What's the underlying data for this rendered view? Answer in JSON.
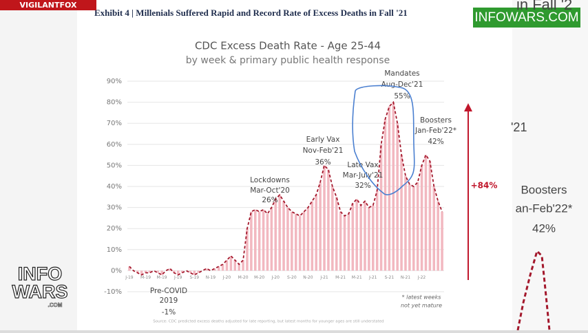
{
  "page": {
    "exhibit": "Exhibit 4 | Millenials Suffered Rapid and Record Rate of Excess Deaths in Fall '21",
    "brand_top_left": "VIGILANTFOX",
    "brand_top_right": "INFOWARS.COM",
    "logo": [
      "INFO",
      "WARS",
      ".COM"
    ],
    "zoom_texts": [
      "in Fall '2",
      "'21",
      "Boosters",
      "an-Feb'22*",
      "42%"
    ]
  },
  "chart_data": {
    "type": "bar",
    "title": "CDC Excess Death Rate - Age 25-44",
    "subtitle": "by week & primary public health response",
    "categories": [
      "J-19",
      null,
      null,
      null,
      "M-19",
      null,
      null,
      null,
      "M-19",
      null,
      null,
      null,
      "J-19",
      null,
      null,
      null,
      "S-19",
      null,
      null,
      null,
      "N-19",
      null,
      null,
      null,
      "J-20",
      null,
      null,
      null,
      "M-20",
      null,
      null,
      null,
      "M-20",
      null,
      null,
      null,
      "J-20",
      null,
      null,
      null,
      "S-20",
      null,
      null,
      null,
      "N-20",
      null,
      null,
      null,
      "J-21",
      null,
      null,
      null,
      "M-21",
      null,
      null,
      null,
      "M-21",
      null,
      null,
      null,
      "J-21",
      null,
      null,
      null,
      "S-21",
      null,
      null,
      null,
      "N-21",
      null,
      null,
      null,
      "J-22",
      null,
      null,
      null,
      null,
      null
    ],
    "values": [
      2,
      0,
      -1,
      -2,
      -1,
      -1,
      0,
      -1,
      -2,
      0,
      1,
      -1,
      -2,
      -1,
      0,
      -1,
      -2,
      -1,
      0,
      1,
      0,
      1,
      2,
      3,
      5,
      7,
      5,
      3,
      5,
      20,
      28,
      29,
      28,
      29,
      27,
      30,
      34,
      36,
      33,
      30,
      28,
      27,
      26,
      28,
      30,
      33,
      36,
      42,
      50,
      48,
      40,
      35,
      28,
      26,
      27,
      32,
      34,
      31,
      33,
      30,
      31,
      38,
      60,
      72,
      78,
      80,
      70,
      55,
      45,
      41,
      40,
      42,
      50,
      55,
      52,
      40,
      33,
      28
    ],
    "color": "#f2b8c0",
    "line_color": "#a3182c",
    "ylim": [
      -10,
      90
    ],
    "yticks": [
      {
        "value": -10,
        "label": "-10%"
      },
      {
        "value": 0,
        "label": "0%"
      },
      {
        "value": 10,
        "label": "10%"
      },
      {
        "value": 20,
        "label": "20%"
      },
      {
        "value": 30,
        "label": "30%"
      },
      {
        "value": 40,
        "label": "40%"
      },
      {
        "value": 50,
        "label": "50%"
      },
      {
        "value": 60,
        "label": "60%"
      },
      {
        "value": 70,
        "label": "70%"
      },
      {
        "value": 80,
        "label": "80%"
      },
      {
        "value": 90,
        "label": "90%"
      }
    ],
    "grid": true,
    "annotations": [
      [
        "Pre-COVID",
        "2019",
        "-1%"
      ],
      [
        "Lockdowns",
        "Mar-Oct'20",
        "26%"
      ],
      [
        "Early Vax",
        "Nov-Feb'21",
        "36%"
      ],
      [
        "Late Vax",
        "Mar-July'21",
        "32%"
      ],
      [
        "Mandates",
        "Aug-Dec'21",
        "55%"
      ],
      [
        "Boosters",
        "Jan-Feb'22*",
        "42%"
      ]
    ],
    "change_label": "+84%",
    "footnote": [
      "* latest weeks",
      "not yet mature"
    ],
    "source": "Source: CDC predicted excess deaths adjusted for late reporting, but latest months for younger ages are still understated"
  }
}
